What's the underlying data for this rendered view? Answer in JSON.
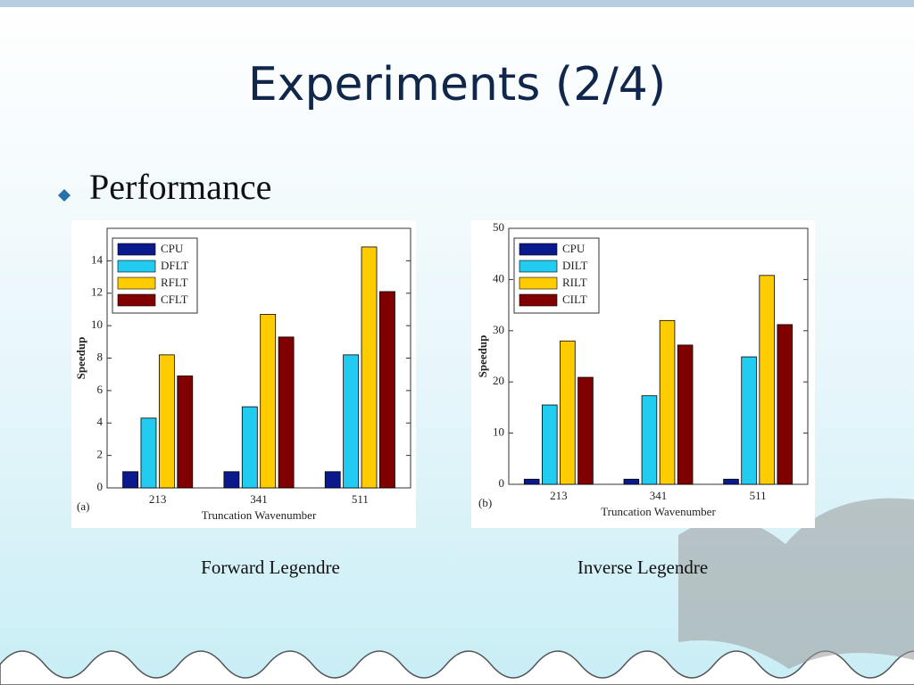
{
  "title": "Experiments (2/4)",
  "bullet": "Performance",
  "chart_data": [
    {
      "type": "bar",
      "panel": "(a)",
      "caption": "Forward Legendre",
      "xlabel": "Truncation Wavenumber",
      "ylabel": "Speedup",
      "categories": [
        "213",
        "341",
        "511"
      ],
      "series": [
        {
          "name": "CPU",
          "color": "#0a1a8c",
          "values": [
            1,
            1,
            1
          ]
        },
        {
          "name": "DFLT",
          "color": "#22ccf0",
          "values": [
            4.3,
            5.0,
            8.2
          ]
        },
        {
          "name": "RFLT",
          "color": "#ffcc00",
          "values": [
            8.2,
            10.7,
            14.85
          ]
        },
        {
          "name": "CFLT",
          "color": "#800000",
          "values": [
            6.9,
            9.3,
            12.1
          ]
        }
      ],
      "ylim": [
        0,
        16
      ],
      "yticks": [
        0,
        2,
        4,
        6,
        8,
        10,
        12,
        14
      ],
      "legend": "upper-left"
    },
    {
      "type": "bar",
      "panel": "(b)",
      "caption": "Inverse Legendre",
      "xlabel": "Truncation Wavenumber",
      "ylabel": "Speedup",
      "categories": [
        "213",
        "341",
        "511"
      ],
      "series": [
        {
          "name": "CPU",
          "color": "#0a1a8c",
          "values": [
            1,
            1,
            1
          ]
        },
        {
          "name": "DILT",
          "color": "#22ccf0",
          "values": [
            15.5,
            17.3,
            24.9
          ]
        },
        {
          "name": "RILT",
          "color": "#ffcc00",
          "values": [
            28,
            32,
            40.8
          ]
        },
        {
          "name": "CILT",
          "color": "#800000",
          "values": [
            20.9,
            27.2,
            31.2
          ]
        }
      ],
      "ylim": [
        0,
        50
      ],
      "yticks": [
        0,
        10,
        20,
        30,
        40,
        50
      ],
      "legend": "upper-left"
    }
  ]
}
